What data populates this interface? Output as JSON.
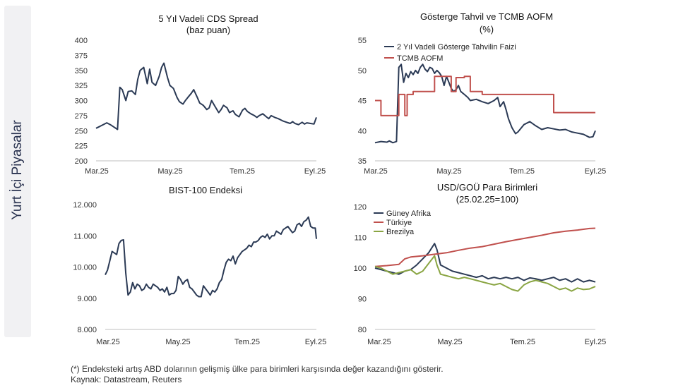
{
  "sidebar": {
    "label": "Yurt İçi Piyasalar"
  },
  "footnote": "(*) Endeksteki artış ABD dolarının gelişmiş ülke para birimleri karşısında değer kazandığını gösterir.",
  "source": "Kaynak: Datastream, Reuters",
  "colors": {
    "navy": "#2b3a55",
    "red": "#c0504d",
    "olive": "#8aa543",
    "axis": "#bfbfbf"
  },
  "chart_data": [
    {
      "type": "line",
      "title": "5 Yıl Vadeli CDS Spread",
      "subtitle": "(baz puan)",
      "xlabels": [
        "Mar.25",
        "May.25",
        "Tem.25",
        "Eyl.25"
      ],
      "xlim": [
        0,
        185
      ],
      "ylim": [
        200,
        400
      ],
      "yticks": [
        200,
        225,
        250,
        275,
        300,
        325,
        350,
        375,
        400
      ],
      "ytick_labels": [
        "200",
        "225",
        "250",
        "275",
        "300",
        "325",
        "350",
        "375",
        "400"
      ],
      "series": [
        {
          "name": "",
          "color": "navy",
          "x": [
            0,
            3,
            6,
            9,
            12,
            15,
            18,
            20,
            22,
            25,
            27,
            30,
            33,
            35,
            37,
            40,
            43,
            45,
            47,
            50,
            53,
            55,
            57,
            60,
            62,
            65,
            68,
            70,
            73,
            75,
            77,
            80,
            82,
            85,
            87,
            90,
            93,
            95,
            97,
            100,
            103,
            105,
            107,
            110,
            112,
            115,
            117,
            120,
            123,
            125,
            127,
            130,
            133,
            135,
            137,
            140,
            143,
            145,
            147,
            150,
            153,
            155,
            157,
            160,
            163,
            165,
            167,
            170,
            173,
            175,
            177,
            180,
            183,
            185
          ],
          "y": [
            254,
            257,
            260,
            263,
            260,
            256,
            252,
            322,
            318,
            300,
            315,
            316,
            310,
            335,
            350,
            355,
            328,
            352,
            330,
            325,
            340,
            355,
            362,
            338,
            325,
            320,
            305,
            298,
            294,
            300,
            305,
            312,
            318,
            305,
            296,
            292,
            285,
            288,
            300,
            290,
            280,
            285,
            292,
            288,
            280,
            283,
            277,
            273,
            284,
            287,
            282,
            278,
            275,
            272,
            275,
            278,
            273,
            270,
            275,
            272,
            270,
            268,
            266,
            264,
            262,
            265,
            262,
            260,
            264,
            261,
            263,
            262,
            261,
            272
          ]
        }
      ]
    },
    {
      "type": "line",
      "title": "Gösterge Tahvil ve TCMB AOFM",
      "subtitle": "(%)",
      "xlabels": [
        "Mar.25",
        "May.25",
        "Tem.25",
        "Eyl.25"
      ],
      "xlim": [
        0,
        185
      ],
      "ylim": [
        35,
        55
      ],
      "yticks": [
        35,
        40,
        45,
        50,
        55
      ],
      "ytick_labels": [
        "35",
        "40",
        "45",
        "50",
        "55"
      ],
      "series": [
        {
          "name": "2 Yıl Vadeli Gösterge Tahvilin Faizi",
          "color": "navy",
          "x": [
            0,
            5,
            10,
            12,
            15,
            18,
            20,
            22,
            24,
            26,
            28,
            30,
            32,
            34,
            36,
            38,
            40,
            42,
            44,
            46,
            48,
            50,
            52,
            54,
            56,
            58,
            60,
            62,
            64,
            66,
            68,
            70,
            72,
            75,
            78,
            80,
            85,
            90,
            95,
            100,
            103,
            105,
            108,
            110,
            112,
            115,
            118,
            120,
            125,
            130,
            135,
            140,
            145,
            150,
            155,
            160,
            165,
            170,
            175,
            180,
            183,
            185
          ],
          "y": [
            38,
            38.2,
            38.1,
            38.3,
            38.0,
            38.2,
            50.5,
            51.0,
            48.0,
            49.5,
            48.8,
            49.8,
            49.3,
            50.0,
            49.5,
            50.5,
            51.0,
            50.2,
            49.8,
            50.5,
            50.3,
            49.5,
            50.0,
            49.6,
            49.0,
            47.5,
            49.0,
            48.0,
            47.0,
            46.5,
            46.8,
            47.5,
            46.5,
            46.0,
            45.5,
            45.0,
            45.2,
            44.8,
            44.5,
            45.0,
            45.5,
            44.0,
            44.8,
            43.5,
            42.0,
            40.5,
            39.5,
            39.8,
            41.0,
            41.5,
            40.8,
            40.2,
            40.5,
            40.3,
            40.1,
            40.2,
            39.8,
            39.6,
            39.4,
            38.9,
            39.0,
            40.0
          ]
        },
        {
          "name": "TCMB AOFM",
          "color": "red",
          "x": [
            0,
            5,
            5,
            20,
            20,
            25,
            25,
            27,
            27,
            32,
            32,
            50,
            50,
            55,
            55,
            64,
            64,
            68,
            68,
            75,
            75,
            80,
            80,
            90,
            90,
            110,
            110,
            130,
            130,
            150,
            150,
            185
          ],
          "y": [
            45,
            45,
            42.5,
            42.5,
            46,
            46,
            42.5,
            42.5,
            46,
            46,
            46.5,
            46.5,
            49,
            49,
            49,
            49,
            46.5,
            46.5,
            48.8,
            48.8,
            49,
            49,
            46.5,
            46.5,
            46,
            46,
            46,
            46,
            46,
            46,
            43,
            43
          ]
        }
      ]
    },
    {
      "type": "line",
      "title": "BIST-100 Endeksi",
      "subtitle": "",
      "xlabels": [
        "Mar.25",
        "May.25",
        "Tem.25",
        "Eyl.25"
      ],
      "xlim": [
        0,
        185
      ],
      "ylim": [
        8000,
        12000
      ],
      "yticks": [
        8000,
        9000,
        10000,
        11000,
        12000
      ],
      "ytick_labels": [
        "8.000",
        "9.000",
        "10.000",
        "11.000",
        "12.000"
      ],
      "series": [
        {
          "name": "",
          "color": "navy",
          "x": [
            0,
            2,
            4,
            6,
            8,
            10,
            12,
            14,
            16,
            18,
            20,
            22,
            24,
            26,
            28,
            30,
            32,
            34,
            36,
            38,
            40,
            42,
            44,
            46,
            48,
            50,
            52,
            54,
            56,
            58,
            60,
            62,
            64,
            66,
            68,
            70,
            72,
            74,
            76,
            78,
            80,
            82,
            84,
            86,
            88,
            90,
            92,
            94,
            96,
            98,
            100,
            102,
            104,
            106,
            108,
            110,
            112,
            114,
            116,
            118,
            120,
            122,
            124,
            126,
            128,
            130,
            132,
            134,
            136,
            138,
            140,
            142,
            144,
            146,
            148,
            150,
            152,
            154,
            156,
            158,
            160,
            162,
            164,
            166,
            168,
            170,
            172,
            174,
            176,
            178,
            180,
            182,
            184,
            185
          ],
          "y": [
            9750,
            9900,
            10200,
            10500,
            10450,
            10400,
            10750,
            10850,
            10870,
            9800,
            9100,
            9200,
            9500,
            9300,
            9450,
            9400,
            9250,
            9300,
            9450,
            9350,
            9300,
            9450,
            9400,
            9350,
            9250,
            9300,
            9200,
            9350,
            9100,
            9150,
            9150,
            9250,
            9700,
            9600,
            9450,
            9550,
            9600,
            9350,
            9300,
            9200,
            9100,
            9050,
            9050,
            9400,
            9300,
            9200,
            9100,
            9250,
            9200,
            9300,
            9500,
            9600,
            9900,
            10150,
            10250,
            10200,
            10350,
            10100,
            10300,
            10400,
            10500,
            10550,
            10600,
            10700,
            10650,
            10800,
            10800,
            10850,
            10950,
            11000,
            10950,
            11050,
            10900,
            11000,
            11000,
            11150,
            11100,
            11050,
            11200,
            11250,
            11300,
            11200,
            11100,
            11150,
            11350,
            11400,
            11300,
            11450,
            11500,
            11600,
            11300,
            11250,
            11250,
            10900
          ]
        }
      ]
    },
    {
      "type": "line",
      "title": "USD/GOÜ Para Birimleri",
      "subtitle": "(25.02.25=100)",
      "xlabels": [
        "Mar.25",
        "May.25",
        "Tem.25",
        "Eyl.25"
      ],
      "xlim": [
        0,
        185
      ],
      "ylim": [
        80,
        120
      ],
      "yticks": [
        80,
        90,
        100,
        110,
        120
      ],
      "ytick_labels": [
        "80",
        "90",
        "100",
        "110",
        "120"
      ],
      "series": [
        {
          "name": "Güney Afrika",
          "color": "navy",
          "x": [
            0,
            5,
            10,
            15,
            20,
            25,
            30,
            35,
            40,
            45,
            50,
            52,
            55,
            60,
            65,
            70,
            75,
            80,
            85,
            90,
            95,
            100,
            105,
            110,
            115,
            120,
            125,
            130,
            135,
            140,
            145,
            150,
            155,
            160,
            165,
            170,
            175,
            180,
            185
          ],
          "y": [
            100,
            99.5,
            99,
            98.5,
            98,
            99,
            99.5,
            101,
            103,
            105,
            108,
            106,
            101,
            100,
            99,
            98.5,
            98,
            97.5,
            97,
            97.5,
            96.5,
            97,
            96.5,
            97,
            96.5,
            97,
            96,
            96.8,
            96.5,
            96,
            96.5,
            97,
            96,
            96.5,
            95.5,
            96.5,
            95.5,
            96,
            95.5
          ]
        },
        {
          "name": "Türkiye",
          "color": "red",
          "x": [
            0,
            10,
            20,
            25,
            30,
            40,
            50,
            60,
            70,
            80,
            90,
            100,
            110,
            120,
            130,
            140,
            150,
            160,
            170,
            180,
            185
          ],
          "y": [
            100.5,
            100.8,
            101.2,
            103,
            103.6,
            104,
            104.5,
            105,
            105.8,
            106.5,
            107,
            107.8,
            108.6,
            109.3,
            110,
            110.7,
            111.5,
            112,
            112.4,
            112.9,
            113
          ]
        },
        {
          "name": "Brezilya",
          "color": "olive",
          "x": [
            0,
            5,
            10,
            15,
            20,
            25,
            30,
            35,
            40,
            45,
            50,
            52,
            55,
            60,
            65,
            70,
            75,
            80,
            85,
            90,
            95,
            100,
            105,
            110,
            115,
            120,
            125,
            130,
            135,
            140,
            145,
            150,
            155,
            160,
            165,
            170,
            175,
            180,
            185
          ],
          "y": [
            100.5,
            100,
            99,
            98,
            98.5,
            99,
            99.5,
            98,
            99,
            101.5,
            104,
            101,
            98,
            97.5,
            97,
            96.5,
            97,
            96.5,
            96,
            95.5,
            95,
            94.5,
            95,
            94,
            93,
            92.5,
            94.5,
            95.5,
            96,
            95.5,
            95,
            94,
            93,
            93.5,
            92.5,
            93.5,
            93,
            93.2,
            94
          ]
        }
      ]
    }
  ]
}
